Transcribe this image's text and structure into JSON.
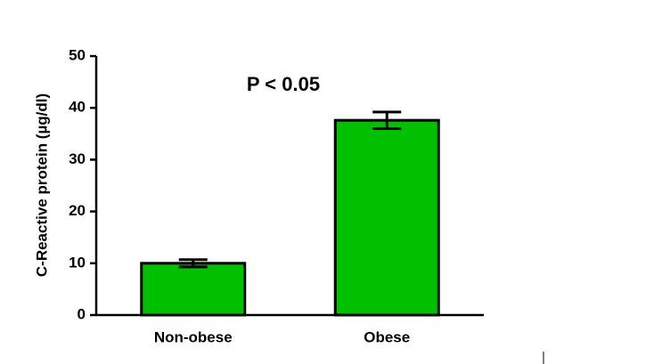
{
  "chart_data": {
    "type": "bar",
    "y_label": "C-Reactive protein (µg/dl)",
    "annotation": "P < 0.05",
    "categories": [
      "Non-obese",
      "Obese"
    ],
    "values": [
      10,
      37.6
    ],
    "errors": [
      0.7,
      1.6
    ],
    "color": "#00c000",
    "ylim": [
      0,
      50
    ],
    "yticks": [
      0,
      10,
      20,
      30,
      40,
      50
    ]
  }
}
